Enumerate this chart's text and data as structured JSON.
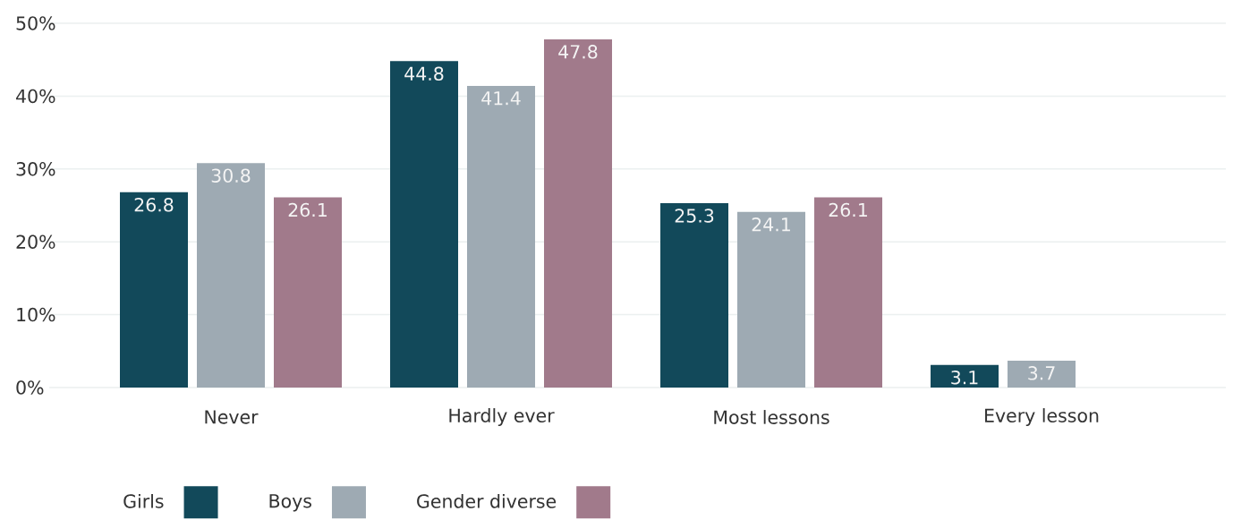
{
  "chart_data": {
    "type": "bar",
    "categories": [
      "Never",
      "Hardly ever",
      "Most lessons",
      "Every lesson"
    ],
    "series": [
      {
        "name": "Girls",
        "color": "#12495a",
        "values": [
          26.8,
          44.8,
          25.3,
          3.1
        ]
      },
      {
        "name": "Boys",
        "color": "#9eaab3",
        "values": [
          30.8,
          41.4,
          24.1,
          3.7
        ]
      },
      {
        "name": "Gender diverse",
        "color": "#a17a8b",
        "values": [
          26.1,
          47.8,
          26.1,
          null
        ]
      }
    ],
    "ylim": [
      0,
      50
    ],
    "yticks": [
      {
        "value": 0,
        "label": "0%"
      },
      {
        "value": 10,
        "label": "10%"
      },
      {
        "value": 20,
        "label": "20%"
      },
      {
        "value": 30,
        "label": "30%"
      },
      {
        "value": 40,
        "label": "40%"
      },
      {
        "value": 50,
        "label": "50%"
      }
    ],
    "grid": "y",
    "legend": "bottom",
    "data_labels": true
  }
}
